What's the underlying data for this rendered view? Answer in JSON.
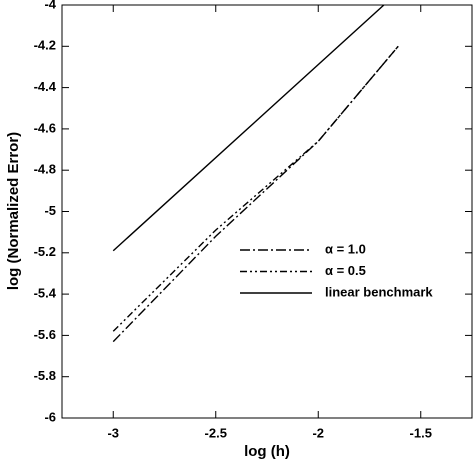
{
  "chart_data": {
    "type": "line",
    "xlabel": "log (h)",
    "ylabel": "log (Normalized Error)",
    "xlim": [
      -3.25,
      -1.25
    ],
    "ylim": [
      -6,
      -4
    ],
    "xticks": [
      -3,
      -2.5,
      -2,
      -1.5
    ],
    "yticks": [
      -6,
      -5.8,
      -5.6,
      -5.4,
      -5.2,
      -5,
      -4.8,
      -4.6,
      -4.4,
      -4.2,
      -4
    ],
    "legend_position": "center-right",
    "series": [
      {
        "name": "α = 1.0",
        "color": "#000000",
        "line_style": "dash-dot",
        "x": [
          -3,
          -2.5,
          -2,
          -1.61
        ],
        "values": [
          -5.63,
          -5.12,
          -4.66,
          -4.2
        ]
      },
      {
        "name": "α = 0.5",
        "color": "#000000",
        "line_style": "dash-dot-dot",
        "x": [
          -3,
          -2.5,
          -2,
          -1.61
        ],
        "values": [
          -5.58,
          -5.09,
          -4.66,
          -4.2
        ]
      },
      {
        "name": "linear benchmark",
        "color": "#000000",
        "line_style": "solid",
        "x": [
          -3,
          -1.68
        ],
        "values": [
          -5.19,
          -4.0
        ]
      }
    ]
  }
}
